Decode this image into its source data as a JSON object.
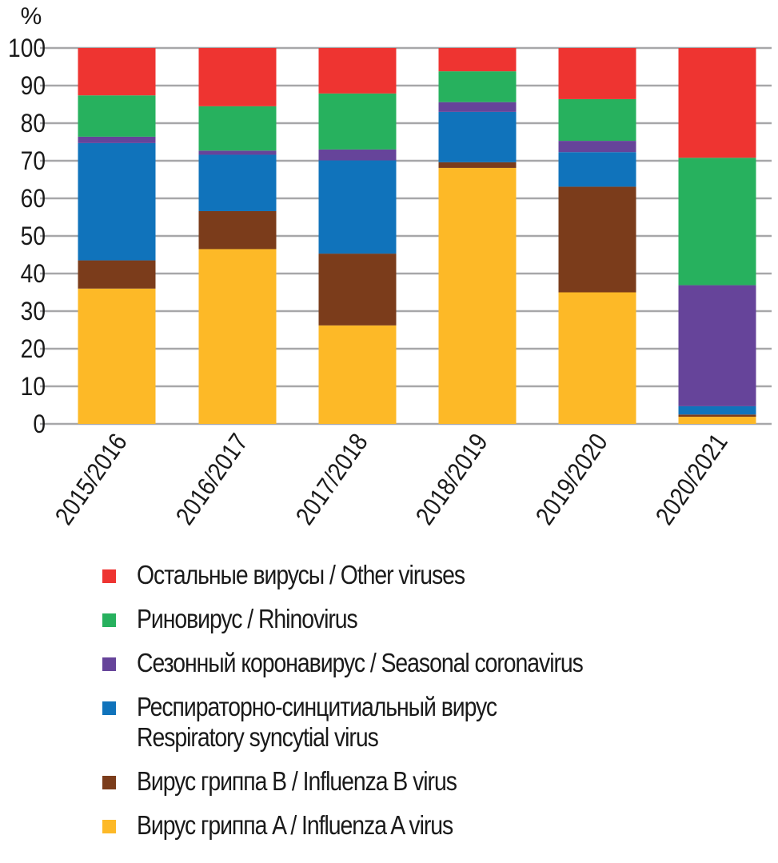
{
  "chart_data": {
    "type": "bar",
    "stacked": true,
    "title": "",
    "xlabel": "",
    "ylabel": "%",
    "ylim": [
      0,
      100
    ],
    "yticks": [
      0,
      10,
      20,
      30,
      40,
      50,
      60,
      70,
      80,
      90,
      100
    ],
    "grid": true,
    "legend_position": "bottom",
    "categories": [
      "2015/2016",
      "2016/2017",
      "2017/2018",
      "2018/2019",
      "2019/2020",
      "2020/2021"
    ],
    "series": [
      {
        "name": "Вирус гриппа A / Influenza A virus",
        "color": "#fdb927",
        "values": [
          36.0,
          46.5,
          26.2,
          68.1,
          35.0,
          1.9
        ]
      },
      {
        "name": "Вирус гриппа B / Influenza B virus",
        "color": "#7b3c1b",
        "values": [
          7.5,
          10.1,
          19.1,
          1.5,
          28.1,
          0.6
        ]
      },
      {
        "name": "Респираторно-синцитиальный вирус Respiratory syncytial virus",
        "color": "#1073bb",
        "values": [
          31.2,
          15.0,
          24.8,
          13.4,
          9.2,
          2.2
        ]
      },
      {
        "name": "Сезонный коронавирус / Seasonal coronavirus",
        "color": "#66449a",
        "values": [
          1.7,
          1.1,
          2.9,
          2.6,
          3.0,
          32.2
        ]
      },
      {
        "name": "Риновирус / Rhinovirus",
        "color": "#27b15e",
        "values": [
          11.0,
          11.8,
          14.9,
          8.2,
          11.1,
          33.9
        ]
      },
      {
        "name": "Остальные вирусы / Other viruses",
        "color": "#ee3431",
        "values": [
          12.6,
          15.5,
          12.1,
          6.2,
          13.6,
          29.2
        ]
      }
    ]
  },
  "legend": [
    {
      "lines": [
        "Остальные вирусы / Other viruses"
      ],
      "color": "#ee3431"
    },
    {
      "lines": [
        "Риновирус / Rhinovirus"
      ],
      "color": "#27b15e"
    },
    {
      "lines": [
        "Сезонный коронавирус / Seasonal coronavirus"
      ],
      "color": "#66449a"
    },
    {
      "lines": [
        "Респираторно-синцитиальный вирус",
        "Respiratory syncytial virus"
      ],
      "color": "#1073bb"
    },
    {
      "lines": [
        "Вирус гриппа B / Influenza B virus"
      ],
      "color": "#7b3c1b"
    },
    {
      "lines": [
        "Вирус гриппа A / Influenza A virus"
      ],
      "color": "#fdb927"
    }
  ]
}
